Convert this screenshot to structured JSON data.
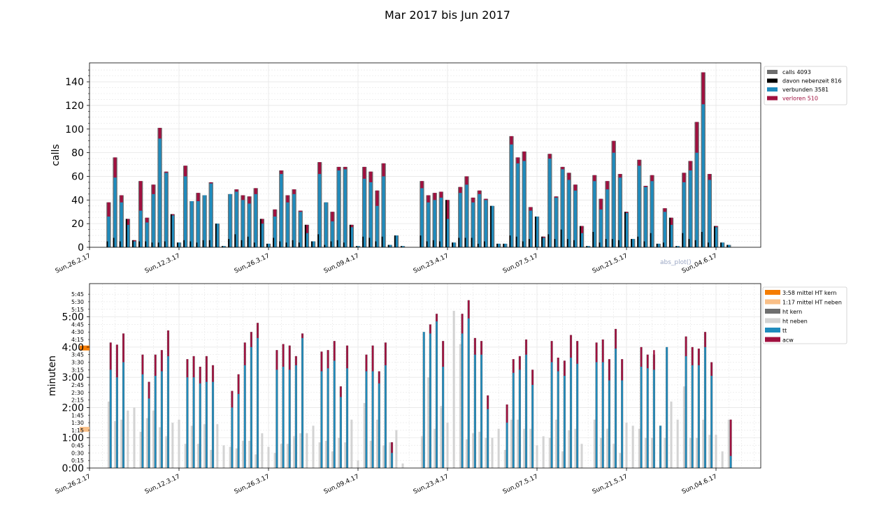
{
  "title": "Mar 2017 bis Jun 2017",
  "colors": {
    "calls": "#6e6e6e",
    "nebenzeit": "#000000",
    "verbunden": "#1f8bbd",
    "verloren": "#a0103f",
    "mittel_kern": "#f57c00",
    "mittel_neben": "#f9bf87",
    "ht_kern": "#6e6e6e",
    "ht_neben": "#d3d3d3",
    "tt": "#1f8bbd",
    "acw": "#a0103f",
    "grid": "#e6e6e6"
  },
  "x_ticks": [
    "Sun,26.2.17",
    "Sun,12.3.17",
    "Sun,26.3.17",
    "Sun,09.4.17",
    "Sun,23.4.17",
    "Sun,07.5.17",
    "Sun,21.5.17",
    "Sun,04.6.17"
  ],
  "watermark": "abs_plot()",
  "chart_data": [
    {
      "type": "bar",
      "ylabel": "calls",
      "ylim": [
        0,
        156
      ],
      "yticks": [
        0,
        20,
        40,
        60,
        80,
        100,
        120,
        140
      ],
      "legend_position": "top-right",
      "legend": [
        "calls 4093",
        "davon nebenzeit 816",
        "verbunden 3581",
        "verloren 510"
      ],
      "x_start": "2017-02-26",
      "x_end": "2017-06-11",
      "days": [
        "2017-03-01",
        "2017-03-02",
        "2017-03-03",
        "2017-03-04",
        "2017-03-05",
        "2017-03-06",
        "2017-03-07",
        "2017-03-08",
        "2017-03-09",
        "2017-03-10",
        "2017-03-11",
        "2017-03-12",
        "2017-03-13",
        "2017-03-14",
        "2017-03-15",
        "2017-03-16",
        "2017-03-17",
        "2017-03-18",
        "2017-03-19",
        "2017-03-20",
        "2017-03-21",
        "2017-03-22",
        "2017-03-23",
        "2017-03-24",
        "2017-03-25",
        "2017-03-26",
        "2017-03-27",
        "2017-03-28",
        "2017-03-29",
        "2017-03-30",
        "2017-03-31",
        "2017-04-01",
        "2017-04-02",
        "2017-04-03",
        "2017-04-04",
        "2017-04-05",
        "2017-04-06",
        "2017-04-07",
        "2017-04-08",
        "2017-04-09",
        "2017-04-10",
        "2017-04-11",
        "2017-04-12",
        "2017-04-13",
        "2017-04-14",
        "2017-04-15",
        "2017-04-16",
        "2017-04-17",
        "2017-04-18",
        "2017-04-19",
        "2017-04-20",
        "2017-04-21",
        "2017-04-22",
        "2017-04-23",
        "2017-04-24",
        "2017-04-25",
        "2017-04-26",
        "2017-04-27",
        "2017-04-28",
        "2017-04-29",
        "2017-04-30",
        "2017-05-01",
        "2017-05-02",
        "2017-05-03",
        "2017-05-04",
        "2017-05-05",
        "2017-05-06",
        "2017-05-07",
        "2017-05-08",
        "2017-05-09",
        "2017-05-10",
        "2017-05-11",
        "2017-05-12",
        "2017-05-13",
        "2017-05-14",
        "2017-05-15",
        "2017-05-16",
        "2017-05-17",
        "2017-05-18",
        "2017-05-19",
        "2017-05-20",
        "2017-05-21",
        "2017-05-22",
        "2017-05-23",
        "2017-05-24",
        "2017-05-25",
        "2017-05-26",
        "2017-05-27",
        "2017-05-28",
        "2017-05-29",
        "2017-05-30",
        "2017-05-31",
        "2017-06-01",
        "2017-06-02",
        "2017-06-03",
        "2017-06-04",
        "2017-06-05",
        "2017-06-06",
        "2017-06-07",
        "2017-06-08",
        "2017-06-09"
      ],
      "series": [
        {
          "name": "calls 4093",
          "values": [
            38,
            76,
            44,
            24,
            6,
            56,
            25,
            53,
            101,
            64,
            28,
            4,
            69,
            39,
            46,
            44,
            55,
            20,
            1,
            45,
            49,
            44,
            43,
            50,
            24,
            3,
            32,
            65,
            44,
            49,
            31,
            19,
            5,
            72,
            38,
            30,
            68,
            68,
            19,
            1,
            68,
            64,
            48,
            71,
            2,
            10,
            1,
            0,
            0,
            56,
            44,
            46,
            47,
            40,
            4,
            51,
            60,
            42,
            48,
            41,
            35,
            3,
            3,
            94,
            76,
            81,
            34,
            26,
            9,
            79,
            43,
            68,
            63,
            53,
            18,
            1,
            61,
            41,
            56,
            90,
            62,
            30,
            7,
            74,
            52,
            61,
            3,
            33,
            25,
            1,
            63,
            73,
            106,
            148,
            62,
            18,
            4,
            2,
            0,
            0,
            0
          ]
        },
        {
          "name": "davon nebenzeit 816",
          "values": [
            5,
            8,
            5,
            24,
            6,
            5,
            5,
            4,
            4,
            5,
            28,
            4,
            6,
            5,
            4,
            6,
            6,
            20,
            1,
            7,
            11,
            6,
            9,
            4,
            24,
            3,
            8,
            5,
            4,
            6,
            4,
            19,
            5,
            11,
            2,
            5,
            6,
            4,
            19,
            1,
            9,
            8,
            5,
            9,
            2,
            10,
            1,
            0,
            0,
            10,
            5,
            6,
            5,
            40,
            4,
            8,
            8,
            8,
            3,
            5,
            35,
            3,
            3,
            10,
            9,
            5,
            7,
            26,
            9,
            11,
            7,
            15,
            7,
            6,
            18,
            1,
            13,
            4,
            7,
            7,
            6,
            30,
            7,
            9,
            5,
            12,
            3,
            4,
            25,
            1,
            12,
            7,
            6,
            13,
            4,
            18,
            4,
            2,
            0,
            0,
            0
          ]
        },
        {
          "name": "verbunden 3581",
          "values": [
            26,
            59,
            38,
            19,
            5,
            31,
            21,
            45,
            92,
            63,
            27,
            4,
            60,
            39,
            39,
            44,
            54,
            20,
            1,
            45,
            47,
            40,
            37,
            45,
            20,
            3,
            26,
            62,
            38,
            45,
            30,
            12,
            5,
            62,
            38,
            22,
            65,
            66,
            17,
            1,
            58,
            55,
            35,
            60,
            2,
            10,
            1,
            0,
            0,
            50,
            38,
            40,
            42,
            24,
            4,
            46,
            53,
            38,
            45,
            40,
            35,
            3,
            3,
            87,
            71,
            73,
            31,
            26,
            8,
            75,
            42,
            66,
            57,
            48,
            12,
            1,
            56,
            32,
            49,
            80,
            59,
            29,
            7,
            69,
            51,
            56,
            3,
            30,
            19,
            1,
            55,
            65,
            80,
            121,
            57,
            17,
            4,
            2,
            0,
            0,
            0
          ]
        },
        {
          "name": "verloren 510",
          "values": [
            12,
            17,
            6,
            5,
            1,
            25,
            4,
            8,
            9,
            1,
            1,
            0,
            9,
            0,
            7,
            0,
            1,
            0,
            0,
            0,
            2,
            4,
            6,
            5,
            4,
            0,
            6,
            3,
            6,
            4,
            1,
            7,
            0,
            10,
            0,
            8,
            3,
            2,
            2,
            0,
            10,
            9,
            13,
            11,
            0,
            0,
            0,
            0,
            0,
            6,
            6,
            6,
            5,
            16,
            0,
            5,
            7,
            4,
            3,
            1,
            0,
            0,
            0,
            7,
            5,
            8,
            3,
            0,
            1,
            4,
            1,
            2,
            6,
            5,
            6,
            0,
            5,
            9,
            7,
            10,
            3,
            1,
            0,
            5,
            1,
            5,
            0,
            3,
            6,
            0,
            8,
            8,
            26,
            27,
            5,
            1,
            0,
            0,
            0,
            0,
            0
          ]
        }
      ]
    },
    {
      "type": "bar",
      "ylabel": "minuten",
      "ylim": [
        0,
        6.1
      ],
      "yticks_major": [
        "0:00",
        "1:00",
        "2:00",
        "3:00",
        "4:00",
        "5:00"
      ],
      "yticks_minor": [
        "0:15",
        "0:30",
        "0:45",
        "1:15",
        "1:30",
        "1:45",
        "2:15",
        "2:30",
        "2:45",
        "3:15",
        "3:30",
        "3:45",
        "4:15",
        "4:30",
        "4:45",
        "5:15",
        "5:30",
        "5:45"
      ],
      "legend_position": "top-right",
      "legend": [
        "3:58 mittel HT kern",
        "1:17 mittel HT neben",
        "ht kern",
        "ht neben",
        "tt",
        "acw"
      ],
      "mittel_kern": 3.97,
      "mittel_neben": 1.28,
      "series": [
        {
          "name": "ht kern",
          "values": [
            4.15,
            4.08,
            4.45,
            0,
            0,
            3.75,
            2.85,
            3.75,
            3.9,
            4.55,
            0,
            0,
            3.6,
            3.7,
            3.35,
            3.7,
            3.4,
            0,
            0,
            2.55,
            3.1,
            4.15,
            4.5,
            4.8,
            0,
            0,
            3.9,
            4.1,
            4.05,
            3.7,
            4.45,
            0,
            0,
            3.85,
            3.9,
            4.2,
            2.7,
            4.05,
            0,
            0,
            3.75,
            4.05,
            3.2,
            4.15,
            0.85,
            0,
            0,
            0,
            0,
            4.5,
            4.75,
            5.1,
            4.2,
            0,
            0,
            5.1,
            5.55,
            4.3,
            4.2,
            2.4,
            0,
            0,
            2.1,
            3.6,
            3.7,
            4.25,
            3.25,
            0,
            0,
            4.2,
            3.65,
            3.55,
            4.4,
            4.2,
            0,
            0,
            4.15,
            4.25,
            3.6,
            4.6,
            3.6,
            0,
            0,
            4.0,
            3.75,
            3.75,
            1.4,
            4.0,
            0,
            0,
            4.35,
            4.0,
            3.95,
            4.5,
            3.5,
            0,
            0,
            1.6,
            0,
            0,
            0
          ]
        },
        {
          "name": "ht neben",
          "values": [
            2.2,
            1.55,
            1.6,
            1.9,
            2.0,
            1.2,
            1.65,
            1.9,
            1.35,
            1.05,
            1.5,
            1.6,
            0.8,
            1.4,
            0.8,
            1.45,
            0.6,
            1.45,
            0.75,
            0.7,
            0.65,
            0.9,
            0.9,
            0.45,
            1.15,
            0.7,
            0.5,
            0.8,
            0.8,
            1.05,
            1.15,
            1.15,
            1.4,
            0.85,
            0.9,
            0.55,
            1.0,
            0.85,
            1.6,
            0.25,
            2.15,
            0.9,
            1.6,
            0.75,
            0.85,
            1.25,
            0.15,
            0,
            0,
            1.05,
            3.0,
            1.3,
            2.05,
            1.5,
            5.2,
            4.1,
            0.95,
            1.15,
            1.2,
            1.0,
            1.0,
            1.3,
            0.6,
            1.6,
            1.6,
            1.3,
            1.3,
            0.75,
            1.05,
            1.0,
            1.6,
            0.55,
            1.25,
            1.3,
            0.8,
            0,
            1.6,
            1.0,
            1.3,
            0.8,
            0.5,
            1.5,
            1.4,
            1.3,
            1.0,
            1.0,
            0,
            1.0,
            2.2,
            1.6,
            2.7,
            1.0,
            1.0,
            1.6,
            1.1,
            1.1,
            0.55,
            1.6,
            0,
            0,
            0
          ]
        },
        {
          "name": "tt",
          "values": [
            3.25,
            3.0,
            3.5,
            0,
            0,
            3.1,
            2.3,
            3.05,
            3.2,
            3.7,
            0,
            0,
            3.0,
            3.0,
            2.8,
            2.85,
            2.85,
            0,
            0,
            2.0,
            2.45,
            3.4,
            4.0,
            4.3,
            0,
            0,
            3.25,
            3.35,
            3.25,
            3.4,
            4.3,
            0,
            0,
            3.2,
            3.3,
            3.55,
            2.35,
            3.3,
            0,
            0,
            3.2,
            3.2,
            2.8,
            3.4,
            0.5,
            0,
            0,
            0,
            0,
            4.5,
            4.45,
            4.85,
            3.35,
            0,
            0,
            4.45,
            4.95,
            3.75,
            3.75,
            1.95,
            0,
            0,
            1.5,
            3.15,
            3.25,
            3.75,
            2.75,
            0,
            0,
            3.5,
            3.2,
            3.05,
            3.65,
            3.45,
            0,
            0,
            3.5,
            3.5,
            2.9,
            3.95,
            2.9,
            0,
            0,
            3.35,
            3.3,
            3.25,
            1.4,
            4.0,
            0,
            0,
            3.7,
            3.4,
            3.4,
            4.0,
            3.05,
            0,
            0,
            0.4,
            0,
            0,
            0
          ]
        },
        {
          "name": "acw",
          "values": [
            0.9,
            1.08,
            0.95,
            0,
            0,
            0.65,
            0.55,
            0.7,
            0.7,
            0.85,
            0,
            0,
            0.6,
            0.7,
            0.55,
            0.85,
            0.55,
            0,
            0,
            0.55,
            0.65,
            0.75,
            0.5,
            0.5,
            0,
            0,
            0.65,
            0.75,
            0.8,
            0.3,
            0.15,
            0,
            0,
            0.65,
            0.6,
            0.65,
            0.35,
            0.75,
            0,
            0,
            0.55,
            0.85,
            0.4,
            0.75,
            0.35,
            0,
            0,
            0,
            0,
            0,
            0.3,
            0.25,
            0.85,
            0,
            0,
            0.65,
            0.6,
            0.55,
            0.45,
            0.45,
            0,
            0,
            0.6,
            0.45,
            0.45,
            0.5,
            0.5,
            0,
            0,
            0.7,
            0.45,
            0.5,
            0.75,
            0.75,
            0,
            0,
            0.65,
            0.75,
            0.7,
            0.65,
            0.7,
            0,
            0,
            0.65,
            0.45,
            0.65,
            0,
            0,
            0,
            0,
            0.65,
            0.6,
            0.55,
            0.5,
            0.45,
            0,
            0,
            1.2,
            0,
            0,
            0
          ]
        }
      ]
    }
  ]
}
